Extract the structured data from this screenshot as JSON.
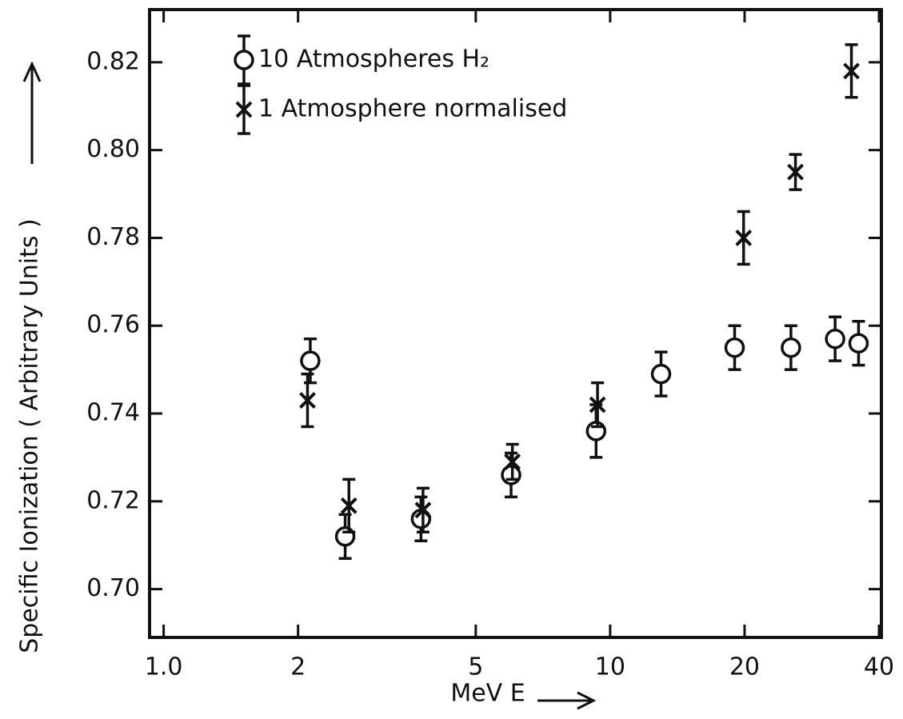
{
  "chart_data": {
    "type": "scatter",
    "xlabel": "MeV  E",
    "ylabel": "Specific Ionization ( Arbitrary Units )",
    "xscale": "log",
    "xlim": [
      0.93,
      40.5
    ],
    "ylim": [
      0.689,
      0.832
    ],
    "xticks": [
      {
        "value": 1,
        "label": "1.0"
      },
      2,
      5,
      10,
      20,
      40
    ],
    "yticks": [
      {
        "value": 0.7,
        "label": "0.70"
      },
      0.72,
      0.74,
      0.76,
      0.78,
      {
        "value": 0.8,
        "label": "0.80"
      },
      0.82
    ],
    "legend": "upper left",
    "series": [
      {
        "name": "10 Atmospheres H₂",
        "marker": "circle",
        "color": "#111111",
        "x": [
          2.13,
          2.55,
          3.77,
          6.0,
          9.3,
          13.0,
          19.0,
          25.4,
          31.9,
          36.0
        ],
        "values": [
          0.752,
          0.712,
          0.716,
          0.726,
          0.736,
          0.749,
          0.755,
          0.755,
          0.757,
          0.756
        ],
        "errors": [
          0.005,
          0.005,
          0.005,
          0.005,
          0.006,
          0.005,
          0.005,
          0.005,
          0.005,
          0.005
        ]
      },
      {
        "name": "1 Atmosphere normalised",
        "marker": "cross",
        "color": "#111111",
        "x": [
          2.1,
          2.6,
          3.81,
          6.04,
          9.37,
          19.9,
          26.0,
          34.7
        ],
        "values": [
          0.743,
          0.719,
          0.718,
          0.729,
          0.742,
          0.78,
          0.795,
          0.818
        ],
        "errors": [
          0.006,
          0.006,
          0.005,
          0.004,
          0.005,
          0.006,
          0.004,
          0.006
        ]
      }
    ]
  }
}
